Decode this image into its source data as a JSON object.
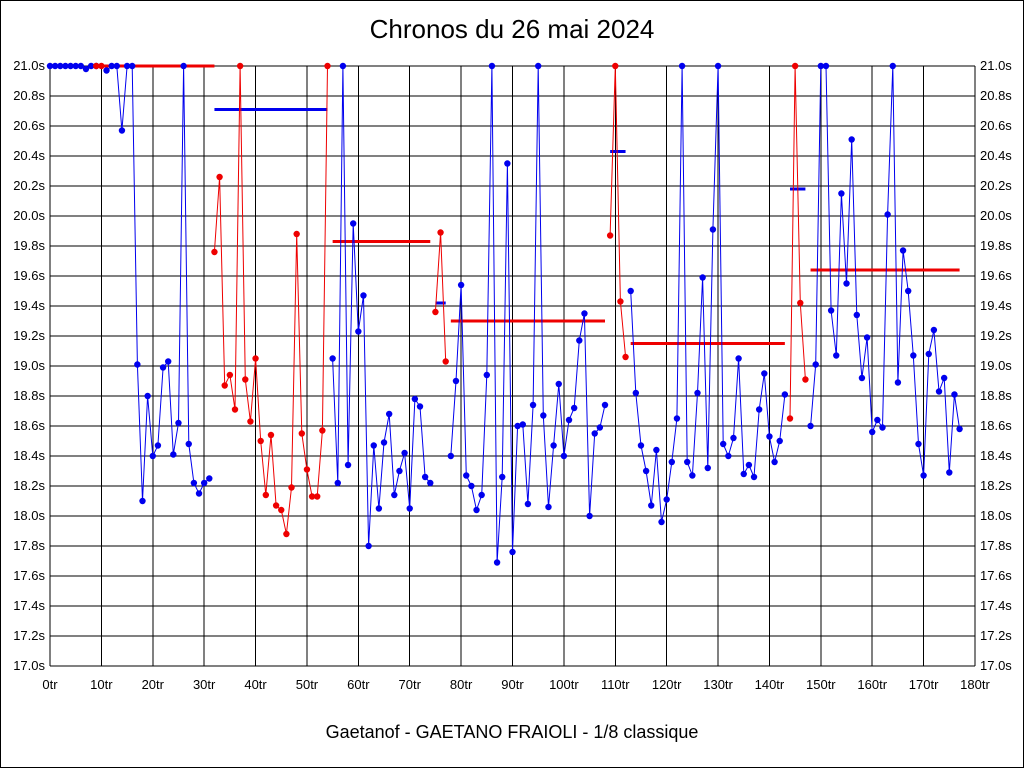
{
  "title": "Chronos du 26 mai 2024",
  "subtitle": "Gaetanof - GAETANO FRAIOLI - 1/8 classique",
  "colors": {
    "blue": "#0000ee",
    "red": "#ee0000",
    "grid": "#000000"
  },
  "chart_data": {
    "type": "line",
    "xlim": [
      0,
      180
    ],
    "ylim": [
      17.0,
      21.0
    ],
    "x_ticks": [
      0,
      10,
      20,
      30,
      40,
      50,
      60,
      70,
      80,
      90,
      100,
      110,
      120,
      130,
      140,
      150,
      160,
      170,
      180
    ],
    "x_tick_labels": [
      "0tr",
      "10tr",
      "20tr",
      "30tr",
      "40tr",
      "50tr",
      "60tr",
      "70tr",
      "80tr",
      "90tr",
      "100tr",
      "110tr",
      "120tr",
      "130tr",
      "140tr",
      "150tr",
      "160tr",
      "170tr",
      "180tr"
    ],
    "y_ticks": [
      17.0,
      17.2,
      17.4,
      17.6,
      17.8,
      18.0,
      18.2,
      18.4,
      18.6,
      18.8,
      19.0,
      19.2,
      19.4,
      19.6,
      19.8,
      20.0,
      20.2,
      20.4,
      20.6,
      20.8,
      21.0
    ],
    "y_tick_labels": [
      "17.0s",
      "17.2s",
      "17.4s",
      "17.6s",
      "17.8s",
      "18.0s",
      "18.2s",
      "18.4s",
      "18.6s",
      "18.8s",
      "19.0s",
      "19.2s",
      "19.4s",
      "19.6s",
      "19.8s",
      "20.0s",
      "20.2s",
      "20.4s",
      "20.6s",
      "20.8s",
      "21.0s"
    ],
    "grid": true,
    "series": [
      {
        "color": "blue",
        "points": [
          [
            0,
            21.0
          ],
          [
            1,
            21.0
          ],
          [
            2,
            21.0
          ],
          [
            3,
            21.0
          ],
          [
            4,
            21.0
          ],
          [
            5,
            21.0
          ],
          [
            6,
            21.0
          ],
          [
            7,
            20.98
          ],
          [
            8,
            21.0
          ],
          [
            9,
            21.0
          ]
        ]
      },
      {
        "color": "red",
        "points": [
          [
            9,
            21.0
          ],
          [
            10,
            21.0
          ]
        ]
      },
      {
        "color": "blue",
        "points": [
          [
            11,
            20.97
          ],
          [
            12,
            21.0
          ],
          [
            13,
            21.0
          ],
          [
            14,
            20.57
          ],
          [
            15,
            21.0
          ],
          [
            16,
            21.0
          ],
          [
            17,
            19.01
          ],
          [
            18,
            18.1
          ],
          [
            19,
            18.8
          ],
          [
            20,
            18.4
          ],
          [
            21,
            18.47
          ],
          [
            22,
            18.99
          ],
          [
            23,
            19.03
          ],
          [
            24,
            18.41
          ],
          [
            25,
            18.62
          ],
          [
            26,
            21.0
          ],
          [
            27,
            18.48
          ],
          [
            28,
            18.22
          ],
          [
            29,
            18.15
          ],
          [
            30,
            18.22
          ],
          [
            31,
            18.25
          ]
        ]
      },
      {
        "color": "red",
        "points": [
          [
            32,
            19.76
          ],
          [
            33,
            20.26
          ],
          [
            34,
            18.87
          ],
          [
            35,
            18.94
          ],
          [
            36,
            18.71
          ],
          [
            37,
            21.0
          ],
          [
            38,
            18.91
          ],
          [
            39,
            18.63
          ],
          [
            40,
            19.05
          ],
          [
            41,
            18.5
          ],
          [
            42,
            18.14
          ],
          [
            43,
            18.54
          ],
          [
            44,
            18.07
          ],
          [
            45,
            18.04
          ],
          [
            46,
            17.88
          ],
          [
            47,
            18.19
          ],
          [
            48,
            19.88
          ],
          [
            49,
            18.55
          ],
          [
            50,
            18.31
          ],
          [
            51,
            18.13
          ],
          [
            52,
            18.13
          ],
          [
            53,
            18.57
          ],
          [
            54,
            21.0
          ]
        ]
      },
      {
        "color": "blue",
        "points": [
          [
            55,
            19.05
          ],
          [
            56,
            18.22
          ],
          [
            57,
            21.0
          ],
          [
            58,
            18.34
          ],
          [
            59,
            19.95
          ],
          [
            60,
            19.23
          ],
          [
            61,
            19.47
          ],
          [
            62,
            17.8
          ],
          [
            63,
            18.47
          ],
          [
            64,
            18.05
          ],
          [
            65,
            18.49
          ],
          [
            66,
            18.68
          ],
          [
            67,
            18.14
          ],
          [
            68,
            18.3
          ],
          [
            69,
            18.42
          ],
          [
            70,
            18.05
          ],
          [
            71,
            18.78
          ],
          [
            72,
            18.73
          ],
          [
            73,
            18.26
          ],
          [
            74,
            18.22
          ]
        ]
      },
      {
        "color": "red",
        "points": [
          [
            75,
            19.36
          ],
          [
            76,
            19.89
          ],
          [
            77,
            19.03
          ]
        ]
      },
      {
        "color": "blue",
        "points": [
          [
            78,
            18.4
          ],
          [
            79,
            18.9
          ],
          [
            80,
            19.54
          ],
          [
            81,
            18.27
          ],
          [
            82,
            18.2
          ],
          [
            83,
            18.04
          ],
          [
            84,
            18.14
          ],
          [
            85,
            18.94
          ],
          [
            86,
            21.0
          ],
          [
            87,
            17.69
          ],
          [
            88,
            18.26
          ],
          [
            89,
            20.35
          ],
          [
            90,
            17.76
          ],
          [
            91,
            18.6
          ],
          [
            92,
            18.61
          ],
          [
            93,
            18.08
          ],
          [
            94,
            18.74
          ],
          [
            95,
            21.0
          ],
          [
            96,
            18.67
          ],
          [
            97,
            18.06
          ],
          [
            98,
            18.47
          ],
          [
            99,
            18.88
          ],
          [
            100,
            18.4
          ],
          [
            101,
            18.64
          ],
          [
            102,
            18.72
          ],
          [
            103,
            19.17
          ],
          [
            104,
            19.35
          ],
          [
            105,
            18.0
          ],
          [
            106,
            18.55
          ],
          [
            107,
            18.59
          ],
          [
            108,
            18.74
          ]
        ]
      },
      {
        "color": "red",
        "points": [
          [
            109,
            19.87
          ],
          [
            110,
            21.0
          ],
          [
            111,
            19.43
          ],
          [
            112,
            19.06
          ]
        ]
      },
      {
        "color": "blue",
        "points": [
          [
            113,
            19.5
          ],
          [
            114,
            18.82
          ],
          [
            115,
            18.47
          ],
          [
            116,
            18.3
          ],
          [
            117,
            18.07
          ],
          [
            118,
            18.44
          ],
          [
            119,
            17.96
          ],
          [
            120,
            18.11
          ],
          [
            121,
            18.36
          ],
          [
            122,
            18.65
          ],
          [
            123,
            21.0
          ],
          [
            124,
            18.36
          ],
          [
            125,
            18.27
          ],
          [
            126,
            18.82
          ],
          [
            127,
            19.59
          ],
          [
            128,
            18.32
          ],
          [
            129,
            19.91
          ],
          [
            130,
            21.0
          ],
          [
            131,
            18.48
          ],
          [
            132,
            18.4
          ],
          [
            133,
            18.52
          ],
          [
            134,
            19.05
          ],
          [
            135,
            18.28
          ],
          [
            136,
            18.34
          ],
          [
            137,
            18.26
          ],
          [
            138,
            18.71
          ],
          [
            139,
            18.95
          ],
          [
            140,
            18.53
          ],
          [
            141,
            18.36
          ],
          [
            142,
            18.5
          ],
          [
            143,
            18.81
          ]
        ]
      },
      {
        "color": "red",
        "points": [
          [
            144,
            18.65
          ],
          [
            145,
            21.0
          ],
          [
            146,
            19.42
          ],
          [
            147,
            18.91
          ]
        ]
      },
      {
        "color": "blue",
        "points": [
          [
            148,
            18.6
          ],
          [
            149,
            19.01
          ],
          [
            150,
            21.0
          ],
          [
            151,
            21.0
          ],
          [
            152,
            19.37
          ],
          [
            153,
            19.07
          ],
          [
            154,
            20.15
          ],
          [
            155,
            19.55
          ],
          [
            156,
            20.51
          ],
          [
            157,
            19.34
          ],
          [
            158,
            18.92
          ],
          [
            159,
            19.19
          ],
          [
            160,
            18.56
          ],
          [
            161,
            18.64
          ],
          [
            162,
            18.59
          ],
          [
            163,
            20.01
          ],
          [
            164,
            21.0
          ],
          [
            165,
            18.89
          ],
          [
            166,
            19.77
          ],
          [
            167,
            19.5
          ],
          [
            168,
            19.07
          ],
          [
            169,
            18.48
          ],
          [
            170,
            18.27
          ],
          [
            171,
            19.08
          ],
          [
            172,
            19.24
          ],
          [
            173,
            18.83
          ],
          [
            174,
            18.92
          ],
          [
            175,
            18.29
          ],
          [
            176,
            18.81
          ],
          [
            177,
            18.58
          ]
        ]
      }
    ],
    "averages": [
      {
        "color": "red",
        "x": [
          8,
          32
        ],
        "y": 21.0
      },
      {
        "color": "blue",
        "x": [
          32,
          54
        ],
        "y": 20.71
      },
      {
        "color": "red",
        "x": [
          55,
          74
        ],
        "y": 19.83
      },
      {
        "color": "blue",
        "x": [
          75,
          77
        ],
        "y": 19.42
      },
      {
        "color": "red",
        "x": [
          78,
          108
        ],
        "y": 19.3
      },
      {
        "color": "blue",
        "x": [
          109,
          112
        ],
        "y": 20.43
      },
      {
        "color": "red",
        "x": [
          113,
          143
        ],
        "y": 19.15
      },
      {
        "color": "blue",
        "x": [
          144,
          147
        ],
        "y": 20.18
      },
      {
        "color": "red",
        "x": [
          148,
          177
        ],
        "y": 19.64
      }
    ]
  }
}
